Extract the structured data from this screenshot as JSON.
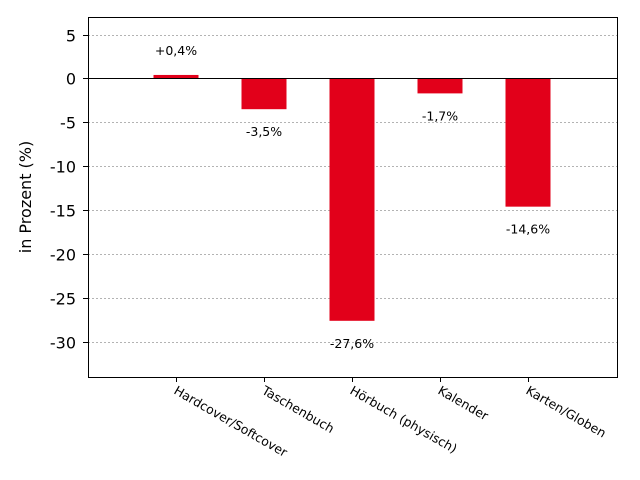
{
  "chart_data": {
    "type": "bar",
    "categories": [
      "Hardcover/Softcover",
      "Taschenbuch",
      "Hörbuch (physisch)",
      "Kalender",
      "Karten/Globen"
    ],
    "values": [
      0.4,
      -3.5,
      -27.6,
      -1.7,
      -14.6
    ],
    "data_labels": [
      "+0,4%",
      "-3,5%",
      "-27,6%",
      "-1,7%",
      "-14,6%"
    ],
    "ylabel": "in Prozent (%)",
    "ylim": [
      -34,
      7
    ],
    "yticks": [
      5,
      0,
      -5,
      -10,
      -15,
      -20,
      -25,
      -30
    ],
    "ytick_labels": [
      "5",
      "0",
      "-5",
      "-10",
      "-15",
      "-20",
      "-25",
      "-30"
    ],
    "bar_color": "#e2001a",
    "grid": true
  }
}
